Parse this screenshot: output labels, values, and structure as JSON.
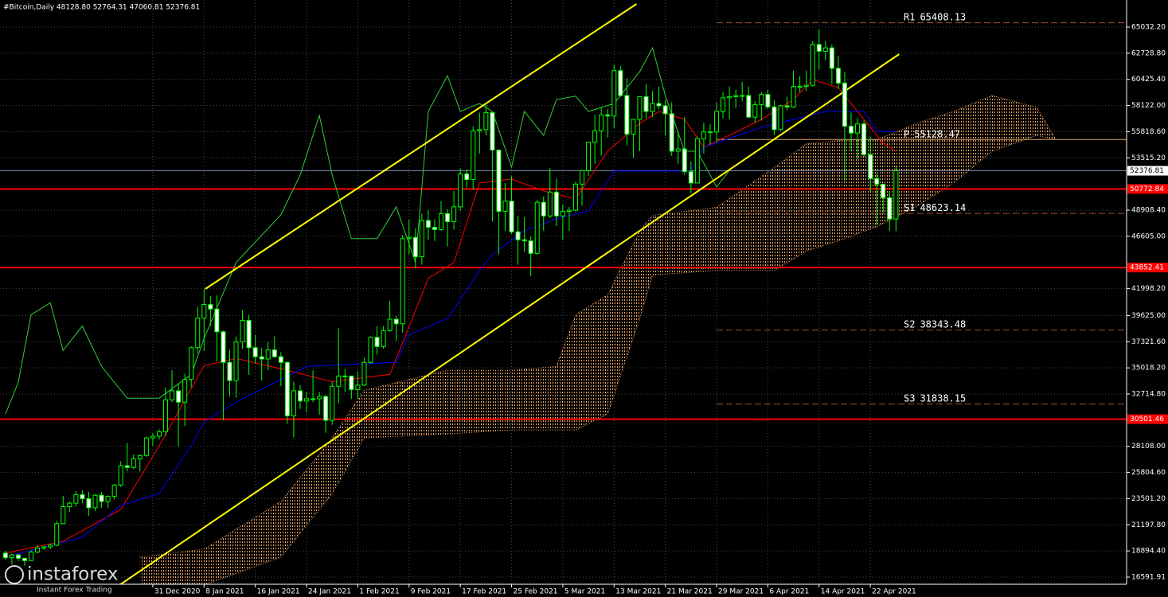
{
  "chart_data": {
    "type": "candlestick",
    "header": "#Bitcoin,Daily  48128.80 52764.31 47060.81 52376.81",
    "watermark": {
      "name": "instaforex",
      "tagline": "Instant Forex Trading"
    },
    "bull_fill": "#000000",
    "bear_fill": "#ffffff",
    "candle_color": "#00ff00",
    "grid": true,
    "grid_color": "#4a4a4a",
    "xlim": [
      -23.85,
      152
    ],
    "ylim": [
      15400,
      67416
    ],
    "yticks": [
      {
        "value": 65032.2,
        "label": "65032.20"
      },
      {
        "value": 62728.8,
        "label": "62728.80"
      },
      {
        "value": 60425.4,
        "label": "60425.40"
      },
      {
        "value": 58122,
        "label": "58122.00"
      },
      {
        "value": 55818.6,
        "label": "55818.60"
      },
      {
        "value": 53515.2,
        "label": "53515.20"
      },
      {
        "value": 48908.4,
        "label": "48908.40"
      },
      {
        "value": 46605,
        "label": "46605.00"
      },
      {
        "value": 41998.2,
        "label": "41998.20"
      },
      {
        "value": 39625,
        "label": "39625.00"
      },
      {
        "value": 37321.6,
        "label": "37321.60"
      },
      {
        "value": 35018.2,
        "label": "35018.20"
      },
      {
        "value": 32714.8,
        "label": "32714.80"
      },
      {
        "value": 28108,
        "label": "28108.00"
      },
      {
        "value": 25804.6,
        "label": "25804.60"
      },
      {
        "value": 23501.2,
        "label": "23501.20"
      },
      {
        "value": 21197.8,
        "label": "21197.80"
      },
      {
        "value": 18894.4,
        "label": "18894.40"
      },
      {
        "value": 16591.91,
        "label": "16591.91"
      }
    ],
    "xticks": [
      {
        "value": 0,
        "label": "31 Dec 2020"
      },
      {
        "value": 8,
        "label": "8 Jan 2021"
      },
      {
        "value": 16,
        "label": "16 Jan 2021"
      },
      {
        "value": 24,
        "label": "24 Jan 2021"
      },
      {
        "value": 32,
        "label": "1 Feb 2021"
      },
      {
        "value": 40,
        "label": "9 Feb 2021"
      },
      {
        "value": 48,
        "label": "17 Feb 2021"
      },
      {
        "value": 56,
        "label": "25 Feb 2021"
      },
      {
        "value": 64,
        "label": "5 Mar 2021"
      },
      {
        "value": 72,
        "label": "13 Mar 2021"
      },
      {
        "value": 80,
        "label": "21 Mar 2021"
      },
      {
        "value": 88,
        "label": "29 Mar 2021"
      },
      {
        "value": 96,
        "label": "6 Apr 2021"
      },
      {
        "value": 104,
        "label": "14 Apr 2021"
      },
      {
        "value": 112,
        "label": "22 Apr 2021"
      }
    ],
    "x": [
      -23,
      -22,
      -21,
      -20,
      -19,
      -18,
      -17,
      -16,
      -15,
      -14,
      -13,
      -12,
      -11,
      -10,
      -9,
      -8,
      -7,
      -6,
      -5,
      -4,
      -3,
      -2,
      -1,
      0,
      1,
      2,
      3,
      4,
      5,
      6,
      7,
      8,
      9,
      10,
      11,
      12,
      13,
      14,
      15,
      16,
      17,
      18,
      19,
      20,
      21,
      22,
      23,
      24,
      25,
      26,
      27,
      28,
      29,
      30,
      31,
      32,
      33,
      34,
      35,
      36,
      37,
      38,
      39,
      40,
      41,
      42,
      43,
      44,
      45,
      46,
      47,
      48,
      49,
      50,
      51,
      52,
      53,
      54,
      55,
      56,
      57,
      58,
      59,
      60,
      61,
      62,
      63,
      64,
      65,
      66,
      67,
      68,
      69,
      70,
      71,
      72,
      73,
      74,
      75,
      76,
      77,
      78,
      79,
      80,
      81,
      82,
      83,
      84,
      85,
      86,
      87,
      88,
      89,
      90,
      91,
      92,
      93,
      94,
      95,
      96,
      97,
      98,
      99,
      100,
      101,
      102,
      103,
      104,
      105,
      106,
      107,
      108,
      109,
      110,
      111,
      112,
      113,
      114,
      115,
      116
    ],
    "open": [
      18700,
      18300,
      18550,
      18250,
      18050,
      18800,
      19150,
      19250,
      19400,
      21300,
      22800,
      23100,
      23850,
      23500,
      22700,
      23800,
      23250,
      23700,
      24700,
      26400,
      26250,
      27000,
      27300,
      28850,
      29000,
      29400,
      32200,
      33000,
      32000,
      34000,
      36800,
      39400,
      40600,
      40200,
      38200,
      35500,
      33900,
      37300,
      39200,
      36800,
      36000,
      35800,
      36600,
      36000,
      35500,
      30800,
      33000,
      32100,
      32300,
      32300,
      32500,
      30400,
      33400,
      34300,
      34300,
      33100,
      33500,
      35500,
      37700,
      36900,
      38300,
      39300,
      38900,
      46400,
      46500,
      44800,
      48000,
      47400,
      47200,
      48600,
      47900,
      49200,
      52100,
      51600,
      55900,
      56000,
      57500,
      54200,
      48800,
      49700,
      47000,
      46300,
      46200,
      45100,
      49600,
      48400,
      50500,
      48400,
      48800,
      48900,
      51200,
      52400,
      54900,
      55900,
      57300,
      57200,
      61200,
      59000,
      55600,
      56900,
      58900,
      57600,
      58300,
      58100,
      57400,
      54100,
      54300,
      52300,
      51300,
      55200,
      55800,
      55800,
      57600,
      58800,
      58900,
      59000,
      59000,
      57100,
      58200,
      59100,
      58000,
      56000,
      58100,
      58000,
      59800,
      59800,
      59900,
      63500,
      62900,
      63200,
      61400,
      60100,
      56300,
      55700,
      56500,
      53800,
      51700,
      51200,
      50000,
      48128.8
    ],
    "high": [
      18900,
      18650,
      18600,
      18300,
      18950,
      19400,
      19350,
      19550,
      21550,
      23750,
      23250,
      24150,
      24250,
      24100,
      23900,
      24100,
      23800,
      24800,
      26800,
      28400,
      27400,
      27400,
      28950,
      29300,
      29600,
      33300,
      34800,
      33600,
      34500,
      36900,
      40400,
      41950,
      41350,
      41400,
      38300,
      36600,
      37800,
      40100,
      39700,
      37900,
      36800,
      37300,
      37800,
      36400,
      35600,
      33800,
      33500,
      32900,
      34800,
      32900,
      32600,
      33800,
      38500,
      34900,
      34300,
      34700,
      35900,
      37800,
      38700,
      38700,
      40900,
      39600,
      46700,
      48100,
      47300,
      48600,
      48900,
      48100,
      49700,
      49000,
      50600,
      52600,
      52500,
      56300,
      57500,
      58300,
      57600,
      54200,
      51300,
      51900,
      48400,
      48300,
      46600,
      49800,
      50100,
      52600,
      51700,
      49400,
      49200,
      51400,
      52500,
      54900,
      57300,
      58000,
      57800,
      61700,
      61600,
      60500,
      56900,
      58900,
      60000,
      59400,
      59800,
      58600,
      58400,
      55800,
      57100,
      53200,
      55400,
      56600,
      56500,
      58400,
      59300,
      59800,
      59500,
      60200,
      59800,
      58500,
      59300,
      59500,
      58600,
      58200,
      58900,
      61200,
      60700,
      61200,
      63800,
      64800,
      63800,
      63500,
      62500,
      61100,
      57500,
      57000,
      56800,
      55400,
      52100,
      51200,
      50500,
      52764.31
    ],
    "low": [
      18100,
      17700,
      18000,
      17600,
      18000,
      18700,
      19000,
      19050,
      19300,
      21250,
      22350,
      22800,
      23100,
      22000,
      22400,
      22700,
      22700,
      23450,
      24550,
      25900,
      26100,
      25900,
      27200,
      28150,
      28700,
      29000,
      32000,
      28100,
      29900,
      33300,
      36300,
      36500,
      38700,
      35600,
      30400,
      32500,
      32400,
      36700,
      34400,
      35400,
      33900,
      34800,
      35900,
      33400,
      30100,
      28900,
      31400,
      31100,
      32000,
      30900,
      29300,
      30000,
      31900,
      32900,
      32300,
      32300,
      33400,
      35400,
      36200,
      36700,
      38200,
      37400,
      38100,
      45000,
      43800,
      44100,
      46300,
      46200,
      47100,
      45700,
      47200,
      48900,
      50900,
      50700,
      53900,
      55500,
      47900,
      45000,
      47100,
      46800,
      44100,
      45200,
      43100,
      45000,
      47100,
      48200,
      47500,
      46300,
      47100,
      48800,
      49300,
      51900,
      53000,
      53700,
      55300,
      56100,
      58900,
      54600,
      53500,
      54100,
      57000,
      57100,
      57800,
      55500,
      53700,
      53000,
      52000,
      50400,
      51300,
      53900,
      54700,
      54900,
      57000,
      56900,
      57900,
      58500,
      57000,
      56600,
      56800,
      57800,
      55500,
      55900,
      57700,
      57900,
      59300,
      59400,
      59800,
      61300,
      62100,
      60000,
      59600,
      51500,
      54200,
      53400,
      53600,
      50500,
      47600,
      48700,
      47100,
      47060.81
    ],
    "close": [
      18300,
      18550,
      18250,
      18050,
      18800,
      19150,
      19250,
      19400,
      21300,
      22800,
      23100,
      23850,
      23500,
      22700,
      23800,
      23250,
      23700,
      24700,
      26400,
      26250,
      27000,
      27300,
      28850,
      29000,
      29400,
      32200,
      33000,
      32000,
      34000,
      36800,
      39400,
      40600,
      40200,
      38200,
      35500,
      33900,
      37300,
      39200,
      36800,
      36000,
      35800,
      36600,
      36000,
      35500,
      30800,
      33000,
      32100,
      32300,
      32300,
      32500,
      30400,
      33400,
      34300,
      34300,
      33100,
      33500,
      35500,
      37700,
      36900,
      38300,
      39300,
      38900,
      46400,
      46500,
      44800,
      48000,
      47400,
      47200,
      48600,
      47900,
      49200,
      52100,
      51600,
      55900,
      56000,
      57500,
      54200,
      48800,
      49700,
      47000,
      46300,
      46200,
      45100,
      49600,
      48400,
      50500,
      48400,
      48800,
      48900,
      51200,
      52400,
      54900,
      55900,
      57300,
      57200,
      61200,
      59000,
      55600,
      56900,
      58900,
      57600,
      58300,
      58100,
      57400,
      54100,
      54300,
      52300,
      51300,
      55200,
      55800,
      55800,
      57600,
      58800,
      58900,
      59000,
      59000,
      57100,
      58200,
      59100,
      58000,
      56000,
      58100,
      58000,
      59800,
      59800,
      59900,
      63500,
      62900,
      63200,
      61400,
      60100,
      56300,
      55700,
      56500,
      53800,
      51700,
      51200,
      50000,
      48128.8,
      52376.81
    ],
    "lines": [
      {
        "color": "#ff0000",
        "x": [
          -23,
          -14,
          -5,
          1,
          8,
          13,
          21,
          28,
          37,
          40,
          43,
          47,
          51,
          56,
          61,
          66,
          71,
          76,
          79,
          83,
          86,
          90,
          95,
          100,
          103,
          107,
          110,
          114,
          116
        ],
        "values": [
          18700,
          19750,
          22550,
          28150,
          35200,
          35850,
          34800,
          33800,
          34450,
          38650,
          42900,
          44300,
          51300,
          51650,
          50600,
          49900,
          54100,
          56550,
          57600,
          56900,
          54450,
          55500,
          56900,
          58650,
          60400,
          59700,
          57600,
          54800,
          54100
        ]
      },
      {
        "color": "#0000ff",
        "x": [
          -23,
          -11,
          -5,
          1,
          6,
          8,
          13,
          24,
          38,
          40,
          46,
          51,
          53,
          58,
          63,
          68,
          72,
          76,
          84,
          86,
          95,
          105,
          111,
          113,
          116
        ],
        "values": [
          18350,
          20100,
          22900,
          23950,
          28150,
          30250,
          32000,
          35150,
          35500,
          37950,
          39350,
          43600,
          45000,
          47100,
          48150,
          48850,
          52350,
          52350,
          52350,
          54450,
          56200,
          57600,
          57600,
          55850,
          55850
        ]
      },
      {
        "color": "#32cd32",
        "x": [
          -23,
          -21,
          -19,
          -16,
          -14,
          -11,
          -8,
          -4,
          1,
          6,
          8,
          13,
          20,
          23,
          26,
          28,
          31,
          35,
          38,
          41,
          43,
          46,
          48,
          51,
          53,
          56,
          58,
          61,
          63,
          66,
          68,
          72,
          76,
          78,
          80,
          83,
          85,
          88,
          90
        ],
        "values": [
          30950,
          33750,
          39700,
          40750,
          36550,
          38700,
          35150,
          32350,
          32350,
          34450,
          37600,
          44300,
          48500,
          52000,
          57250,
          52000,
          46400,
          46400,
          49200,
          44300,
          57600,
          60750,
          57600,
          58300,
          57600,
          52700,
          57600,
          55500,
          58650,
          58950,
          57600,
          58300,
          61100,
          63200,
          59000,
          54100,
          54100,
          50950,
          52400
        ]
      }
    ],
    "cloud": {
      "color": "#f4a460",
      "x": [
        -2,
        8,
        20,
        28,
        33,
        46,
        56,
        63,
        66,
        71,
        76,
        78,
        88,
        97,
        102,
        108,
        113,
        119,
        125,
        131,
        138,
        141
      ],
      "span_a": [
        18350,
        19050,
        23250,
        28850,
        33050,
        34800,
        34800,
        35150,
        39700,
        41450,
        47050,
        48450,
        49150,
        52650,
        54750,
        55100,
        55100,
        56500,
        57600,
        59000,
        57950,
        55100
      ],
      "span_b": [
        15900,
        15900,
        18350,
        23950,
        28850,
        29200,
        29550,
        29550,
        29550,
        30950,
        39350,
        43200,
        43600,
        43600,
        45300,
        46400,
        47450,
        49150,
        51300,
        54100,
        55500,
        55100
      ]
    },
    "trendlines": [
      {
        "color": "#ffff00",
        "x": [
          8.2,
          75.5
        ],
        "values": [
          41970,
          67065
        ]
      },
      {
        "color": "#ffff00",
        "x": [
          -5.2,
          116.5
        ],
        "values": [
          15890,
          62650
        ]
      }
    ],
    "levels": {
      "color": "#ff0000",
      "values": [
        50772.84,
        43852.41,
        30501.46
      ]
    },
    "last_price": {
      "value": 52376.81,
      "color": "#7080a8"
    },
    "pivots": {
      "color": "#a0522d",
      "pivot_color": "#d9a066",
      "items": [
        {
          "label": "R1",
          "value": 65408.13
        },
        {
          "label": "P",
          "value": 55128.47
        },
        {
          "label": "S1",
          "value": 48623.14
        },
        {
          "label": "S2",
          "value": 38343.48
        },
        {
          "label": "S3",
          "value": 31838.15
        }
      ]
    }
  }
}
